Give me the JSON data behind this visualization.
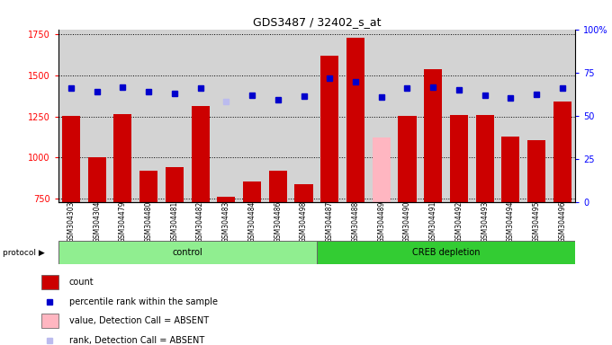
{
  "title": "GDS3487 / 32402_s_at",
  "samples": [
    "GSM304303",
    "GSM304304",
    "GSM304479",
    "GSM304480",
    "GSM304481",
    "GSM304482",
    "GSM304483",
    "GSM304484",
    "GSM304486",
    "GSM304498",
    "GSM304487",
    "GSM304488",
    "GSM304489",
    "GSM304490",
    "GSM304491",
    "GSM304492",
    "GSM304493",
    "GSM304494",
    "GSM304495",
    "GSM304496"
  ],
  "count_values": [
    1255,
    1000,
    1265,
    920,
    940,
    1315,
    760,
    855,
    920,
    840,
    1620,
    1730,
    1120,
    1255,
    1540,
    1260,
    1260,
    1125,
    1105,
    1340
  ],
  "rank_values": [
    1420,
    1400,
    1430,
    1400,
    1390,
    1420,
    1340,
    1380,
    1350,
    1375,
    1480,
    1460,
    1370,
    1420,
    1430,
    1410,
    1380,
    1360,
    1385,
    1420
  ],
  "absent_count_indices": [
    12
  ],
  "absent_rank_indices": [
    6
  ],
  "control_count": 10,
  "creb_count": 10,
  "ylim_left": [
    730,
    1780
  ],
  "yticks_left": [
    750,
    1000,
    1250,
    1500,
    1750
  ],
  "yticks_right": [
    0,
    25,
    50,
    75,
    100
  ],
  "bar_color_present": "#CC0000",
  "bar_color_absent": "#FFB6C1",
  "dot_color_present": "#0000CC",
  "dot_color_absent": "#BBBBEE",
  "bg_color": "#D3D3D3",
  "control_bg": "#90EE90",
  "creb_bg": "#33CC33",
  "legend_items": [
    {
      "label": "count",
      "color": "#CC0000",
      "type": "bar"
    },
    {
      "label": "percentile rank within the sample",
      "color": "#0000CC",
      "type": "dot"
    },
    {
      "label": "value, Detection Call = ABSENT",
      "color": "#FFB6C1",
      "type": "bar"
    },
    {
      "label": "rank, Detection Call = ABSENT",
      "color": "#BBBBEE",
      "type": "dot"
    }
  ]
}
